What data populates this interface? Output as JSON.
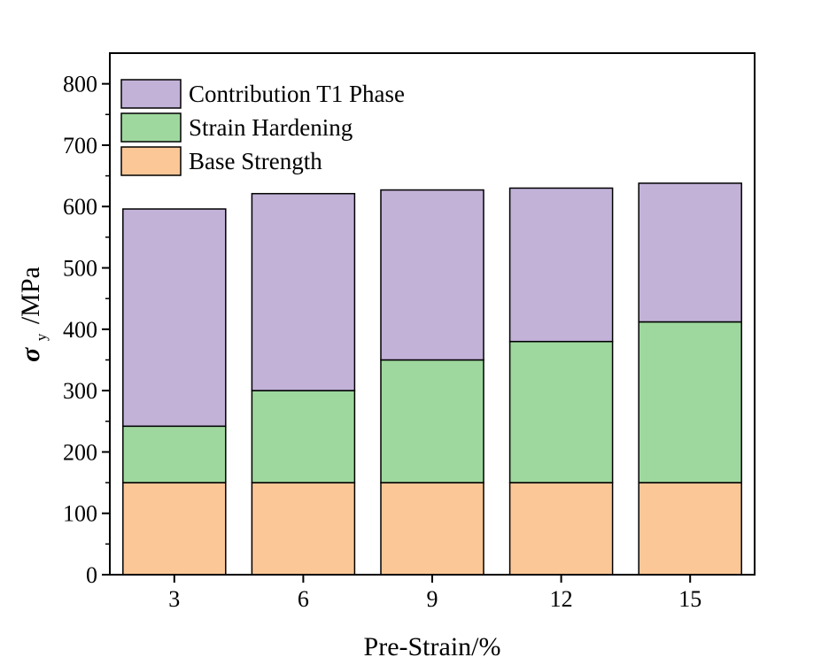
{
  "chart_data": {
    "type": "bar",
    "stacked": true,
    "categories": [
      "3",
      "6",
      "9",
      "12",
      "15"
    ],
    "series": [
      {
        "name": "Base Strength",
        "color": "#FCC797",
        "values": [
          150,
          150,
          150,
          150,
          150
        ]
      },
      {
        "name": "Strain Hardening",
        "color": "#9ED89E",
        "values": [
          92,
          150,
          200,
          230,
          262
        ]
      },
      {
        "name": "Contribution T1 Phase",
        "color": "#C2B2D8",
        "values": [
          354,
          321,
          277,
          250,
          226
        ]
      }
    ],
    "legend_order": [
      "Contribution T1 Phase",
      "Strain Hardening",
      "Base Strength"
    ],
    "legend_position": "top-left",
    "xlabel": "Pre-Strain/%",
    "ylabel": {
      "symbol": "σ",
      "subscript": "y",
      "unit": "/MPa"
    },
    "ylim": [
      0,
      850
    ],
    "yticks": [
      0,
      100,
      200,
      300,
      400,
      500,
      600,
      700,
      800
    ],
    "grid": false
  }
}
